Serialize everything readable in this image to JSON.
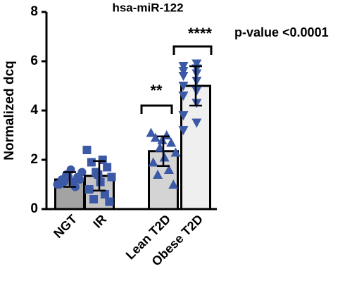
{
  "chart_data": {
    "type": "bar",
    "title": "hsa-miR-122",
    "y_label": "Normalized dcq",
    "categories": [
      "NGT",
      "IR",
      "Lean T2D",
      "Obese T2D"
    ],
    "values": [
      1.2,
      1.35,
      2.35,
      5.0
    ],
    "errors": [
      0.3,
      0.6,
      0.6,
      0.8
    ],
    "bar_colors": [
      "#a3a3a3",
      "#c6c6c6",
      "#d4d4d4",
      "#efefef"
    ],
    "point_color": "#3b59a6",
    "markers": [
      "circle",
      "square",
      "triangle-up",
      "triangle-down"
    ],
    "points": [
      [
        1.0,
        1.1,
        1.2,
        1.3,
        1.4,
        1.5,
        1.6,
        1.0,
        0.9,
        1.1,
        1.2,
        1.3
      ],
      [
        2.4,
        2.0,
        1.9,
        1.7,
        1.5,
        1.3,
        1.1,
        0.8,
        0.6,
        0.4,
        0.3,
        1.4
      ],
      [
        3.1,
        3.0,
        2.9,
        2.7,
        2.5,
        2.3,
        2.1,
        1.9,
        1.6,
        1.4,
        1.0,
        2.8
      ],
      [
        5.8,
        5.7,
        5.6,
        5.5,
        5.4,
        5.2,
        5.0,
        4.8,
        4.6,
        4.3,
        3.8,
        3.5,
        3.2,
        5.9
      ]
    ],
    "annotations": [
      "**",
      "****",
      "p-value <0.0001"
    ],
    "ylim": [
      0,
      8
    ],
    "yticks": [
      0,
      2,
      4,
      6,
      8
    ]
  }
}
